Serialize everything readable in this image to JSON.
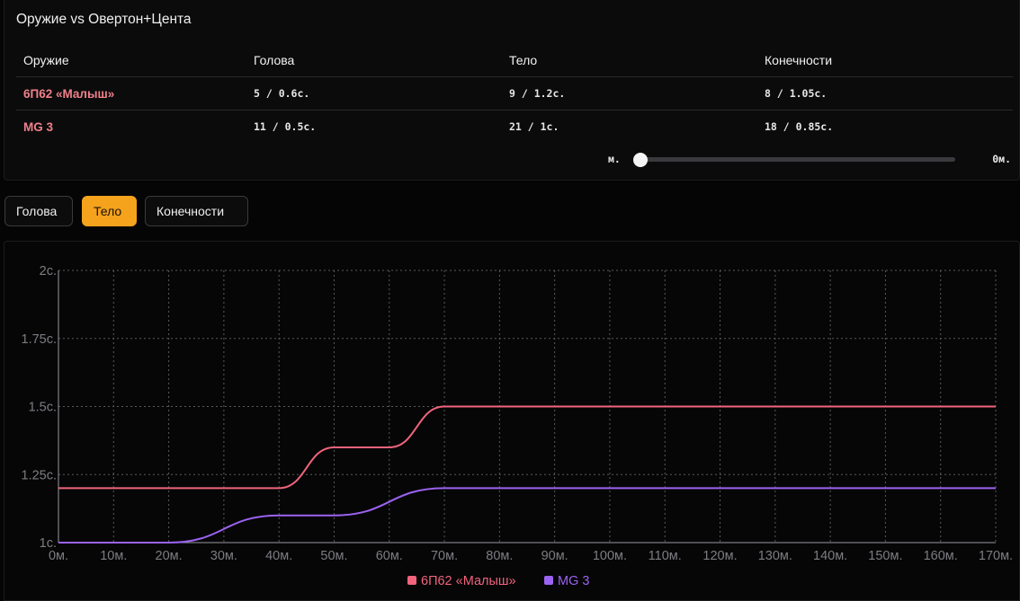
{
  "panel": {
    "title": "Оружие vs Овертон+Цента",
    "headers": [
      "Оружие",
      "Голова",
      "Тело",
      "Конечности"
    ],
    "rows": [
      {
        "name": "6П62 «Малыш»",
        "head": "5 / 0.6с.",
        "body": "9 / 1.2с.",
        "limbs": "8 / 1.05с."
      },
      {
        "name": "MG 3",
        "head": "11 / 0.5с.",
        "body": "21 / 1с.",
        "limbs": "18 / 0.85с."
      }
    ],
    "range": {
      "left_label": "м.",
      "right_label": "0м.",
      "value": 0
    }
  },
  "tabs": [
    {
      "label": "Голова",
      "active": false
    },
    {
      "label": "Тело",
      "active": true
    },
    {
      "label": "Конечности",
      "active": false
    }
  ],
  "colors": {
    "series1": "#f0647c",
    "series2": "#9b63f0",
    "accent": "#f5a21c"
  },
  "chart_data": {
    "type": "line",
    "x": [
      0,
      10,
      20,
      30,
      40,
      50,
      60,
      70,
      80,
      90,
      100,
      110,
      120,
      130,
      140,
      150,
      160,
      170
    ],
    "x_tick_labels": [
      "0м.",
      "10м.",
      "20м.",
      "30м.",
      "40м.",
      "50м.",
      "60м.",
      "70м.",
      "80м.",
      "90м.",
      "100м.",
      "110м.",
      "120м.",
      "130м.",
      "140м.",
      "150м.",
      "160м.",
      "170м."
    ],
    "y_tick_values": [
      1,
      1.25,
      1.5,
      1.75,
      2
    ],
    "y_tick_labels": [
      "1с.",
      "1.25с.",
      "1.5с.",
      "1.75с.",
      "2с."
    ],
    "xlim": [
      0,
      170
    ],
    "ylim": [
      1,
      2
    ],
    "grid": true,
    "legend_position": "bottom-center",
    "series": [
      {
        "name": "6П62 «Малыш»",
        "points": [
          [
            0,
            1.2
          ],
          [
            40,
            1.2
          ],
          [
            50,
            1.35
          ],
          [
            60,
            1.35
          ],
          [
            70,
            1.5
          ],
          [
            170,
            1.5
          ]
        ]
      },
      {
        "name": "MG 3",
        "points": [
          [
            0,
            1.0
          ],
          [
            20,
            1.0
          ],
          [
            40,
            1.1
          ],
          [
            50,
            1.1
          ],
          [
            70,
            1.2
          ],
          [
            170,
            1.2
          ]
        ]
      }
    ]
  }
}
